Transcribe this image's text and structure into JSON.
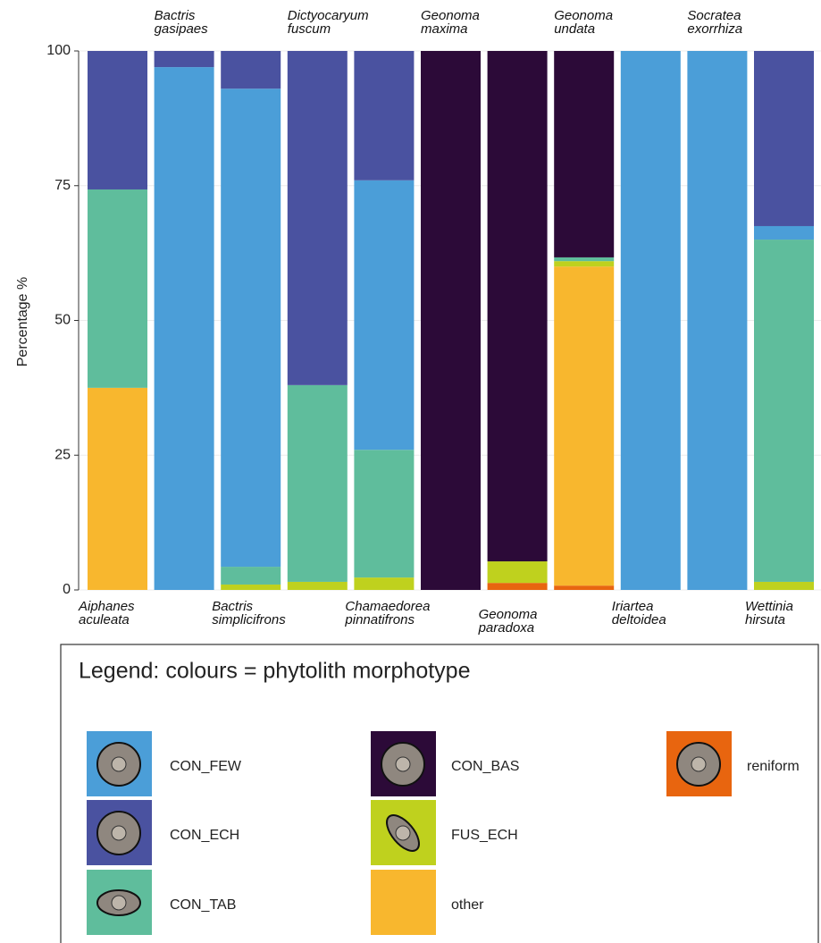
{
  "chart_data": {
    "type": "stacked_bar",
    "y_label": "Percentage %",
    "categories": [
      "Aiphanes aculeata",
      "Bactris gasipaes",
      "Bactris simplicifrons",
      "Dictyocaryum fuscum",
      "Chamaedorea pinnatifrons",
      "Geonoma maxima",
      "Geonoma paradoxa",
      "Geonoma undata",
      "Iriartea deltoidea",
      "Socratea exorrhiza",
      "Wettinia hirsuta"
    ],
    "series": [
      {
        "name": "reniform",
        "color": "#e8650f",
        "values": [
          0,
          0,
          0,
          0,
          0,
          0,
          1.3,
          0.8,
          0,
          0,
          0
        ]
      },
      {
        "name": "other",
        "color": "#f8b72e",
        "values": [
          37.5,
          0,
          0,
          0,
          0,
          0,
          0,
          59.2,
          0,
          0,
          0
        ]
      },
      {
        "name": "FUS_ECH",
        "color": "#bfd11e",
        "values": [
          0,
          0,
          1,
          1.5,
          2.3,
          0,
          4,
          1,
          0,
          0,
          1.5
        ]
      },
      {
        "name": "CON_TAB",
        "color": "#5fbd9c",
        "values": [
          36.8,
          0,
          3.3,
          36.5,
          23.7,
          0,
          0,
          0.7,
          0,
          0,
          63.5
        ]
      },
      {
        "name": "CON_FEW",
        "color": "#4b9ed8",
        "values": [
          0,
          97,
          88.7,
          0,
          50,
          0,
          0,
          0,
          100,
          100,
          2.5
        ]
      },
      {
        "name": "CON_ECH",
        "color": "#4a52a0",
        "values": [
          25.7,
          3,
          7,
          62,
          24,
          0,
          0,
          0,
          0,
          0,
          32.5
        ]
      },
      {
        "name": "CON_BAS",
        "color": "#2c0a38",
        "values": [
          0,
          0,
          0,
          0,
          0,
          100,
          94.7,
          38.3,
          0,
          0,
          0
        ]
      }
    ],
    "ylim": [
      0,
      100
    ],
    "yticks": [
      0,
      25,
      50,
      75,
      100
    ],
    "grid": true,
    "legend_title": "Legend: colours  = phytolith morphotype"
  }
}
